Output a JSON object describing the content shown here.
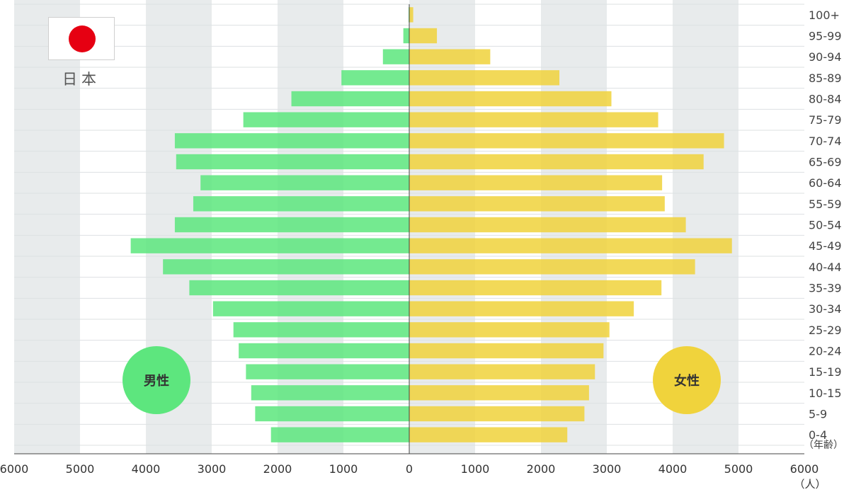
{
  "country": "日本",
  "labels": {
    "male": "男性",
    "female": "女性",
    "age_unit": "（年齢）",
    "count_unit": "（人）"
  },
  "colors": {
    "male": "#5de67e",
    "female": "#f0d33c",
    "flag_disc": "#e60012",
    "band": "#e8ebec"
  },
  "icons": {
    "flag": "japan-flag-icon"
  },
  "chart_data": {
    "type": "bar",
    "orientation": "horizontal",
    "subtype": "population-pyramid",
    "categories": [
      "100+",
      "95-99",
      "90-94",
      "85-89",
      "80-84",
      "75-79",
      "70-74",
      "65-69",
      "60-64",
      "55-59",
      "50-54",
      "45-49",
      "40-44",
      "35-39",
      "30-34",
      "25-29",
      "20-24",
      "15-19",
      "10-15",
      "5-9",
      "0-4"
    ],
    "series": [
      {
        "name": "男性",
        "side": "left",
        "values": [
          10,
          90,
          400,
          1030,
          1790,
          2520,
          3560,
          3540,
          3170,
          3280,
          3560,
          4230,
          3740,
          3340,
          2980,
          2670,
          2590,
          2480,
          2400,
          2340,
          2100
        ]
      },
      {
        "name": "女性",
        "side": "right",
        "values": [
          60,
          420,
          1230,
          2280,
          3070,
          3780,
          4780,
          4470,
          3840,
          3880,
          4200,
          4900,
          4340,
          3830,
          3410,
          3040,
          2950,
          2820,
          2730,
          2660,
          2400
        ]
      }
    ],
    "x_ticks": [
      "6000",
      "5000",
      "4000",
      "3000",
      "2000",
      "1000",
      "0",
      "1000",
      "2000",
      "3000",
      "4000",
      "5000",
      "6000"
    ],
    "xlim": [
      -6000,
      6000
    ],
    "grid": "alternating vertical bands"
  }
}
